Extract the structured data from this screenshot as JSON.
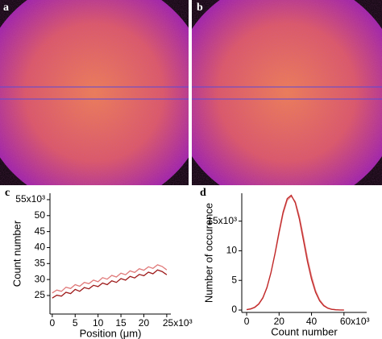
{
  "panel_labels": [
    "a",
    "b"
  ],
  "chart_data": [
    {
      "type": "line",
      "title": "c",
      "ylabel": "Count number",
      "xlabel": "Position (μm)",
      "x": [
        0,
        1000,
        2000,
        3000,
        4000,
        5000,
        6000,
        7000,
        8000,
        9000,
        10000,
        11000,
        12000,
        13000,
        14000,
        15000,
        16000,
        17000,
        18000,
        19000,
        20000,
        21000,
        22000,
        23000,
        24000,
        25000
      ],
      "series": [
        {
          "color": "#9e1a1a",
          "values": [
            24200,
            25100,
            24800,
            26000,
            25600,
            26900,
            26300,
            27500,
            27100,
            28200,
            27800,
            28900,
            28400,
            29600,
            29100,
            30300,
            29800,
            31000,
            30500,
            31600,
            31200,
            32300,
            31800,
            33000,
            32500,
            31500
          ]
        },
        {
          "color": "#e07878",
          "values": [
            25800,
            26700,
            26300,
            27600,
            27200,
            28400,
            27900,
            29100,
            28700,
            29800,
            29300,
            30600,
            30100,
            31300,
            30800,
            32000,
            31500,
            32700,
            32200,
            33400,
            32900,
            34000,
            33500,
            34600,
            34100,
            33000
          ]
        }
      ],
      "xlim": [
        -500,
        25900
      ],
      "ylim": [
        19200,
        57000
      ],
      "xticks": [
        0,
        {
          "value": 5000,
          "label": "5"
        },
        {
          "value": 10000,
          "label": "10"
        },
        {
          "value": 15000,
          "label": "15"
        },
        {
          "value": 20000,
          "label": "20"
        },
        {
          "value": 25000,
          "label": "25x10³"
        }
      ],
      "yticks": [
        {
          "value": 25000,
          "label": "25"
        },
        {
          "value": 30000,
          "label": "30"
        },
        {
          "value": 35000,
          "label": "35"
        },
        {
          "value": 40000,
          "label": "40"
        },
        {
          "value": 45000,
          "label": "45"
        },
        {
          "value": 50000,
          "label": "50"
        },
        {
          "value": 55000,
          "label": "55x10³"
        }
      ]
    },
    {
      "type": "line",
      "title": "d",
      "ylabel": "Number of occurence",
      "xlabel": "Count number",
      "x": [
        0,
        2500,
        5000,
        7500,
        10000,
        12500,
        15000,
        17500,
        20000,
        22500,
        25000,
        27500,
        30000,
        32500,
        35000,
        37500,
        40000,
        42500,
        45000,
        47500,
        50000,
        52500,
        55000,
        57500,
        60000
      ],
      "series": [
        {
          "color": "#c02828",
          "values": [
            65,
            178,
            443,
            996,
            2025,
            3750,
            6300,
            9590,
            13230,
            16560,
            18800,
            19360,
            18080,
            15330,
            11770,
            8170,
            5170,
            2970,
            1540,
            730,
            310,
            120,
            42,
            13,
            4
          ]
        },
        {
          "color": "#e48888",
          "values": [
            90,
            230,
            520,
            1100,
            2150,
            3850,
            6300,
            9450,
            12900,
            16200,
            18500,
            19200,
            18300,
            15800,
            12400,
            8800,
            5700,
            3300,
            1750,
            830,
            360,
            140,
            50,
            16,
            5
          ]
        }
      ],
      "xlim": [
        -3000,
        74000
      ],
      "ylim": [
        -400,
        19700
      ],
      "xticks": [
        0,
        {
          "value": 20000,
          "label": "20"
        },
        {
          "value": 40000,
          "label": "40"
        },
        {
          "value": 60000,
          "label": "60x10³"
        }
      ],
      "yticks": [
        0,
        {
          "value": 5000,
          "label": "5"
        },
        {
          "value": 10000,
          "label": "10"
        },
        {
          "value": 15000,
          "label": "15x10³"
        }
      ]
    }
  ]
}
